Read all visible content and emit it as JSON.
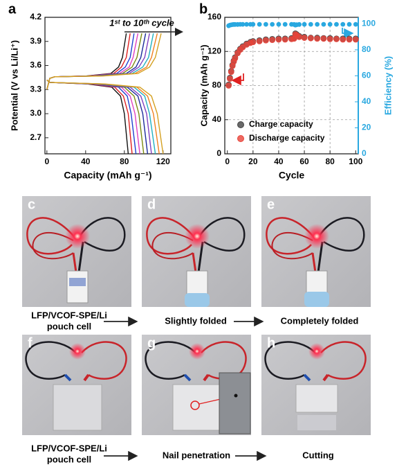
{
  "chart_data": [
    {
      "type": "line",
      "ylabel": "Potential (V vs Li/Li⁺)",
      "xlabel": "Capacity (mAh g⁻¹)",
      "annotation": "1ˢᵗ to 10ᵗʰ cycle",
      "xlim": [
        -2,
        128
      ],
      "xticks": [
        0,
        40,
        80,
        120
      ],
      "ylim": [
        2.5,
        4.2
      ],
      "yticks": [
        2.7,
        {
          "value": 3,
          "label": "3.0"
        },
        3.3,
        3.6,
        3.9,
        4.2
      ],
      "series": [
        {
          "color": "#111111",
          "x": [
            0,
            3,
            8,
            41,
            66,
            74,
            78,
            82
          ],
          "values": [
            3.3,
            3.44,
            3.46,
            3.47,
            3.5,
            3.58,
            3.7,
            4.0
          ]
        },
        {
          "color": "#e02020",
          "x": [
            0,
            3,
            8,
            43,
            69,
            77,
            82,
            86
          ],
          "values": [
            3.3,
            3.44,
            3.46,
            3.47,
            3.5,
            3.58,
            3.7,
            4.0
          ]
        },
        {
          "color": "#1f3fd0",
          "x": [
            0,
            3,
            8,
            45,
            72,
            81,
            86,
            90
          ],
          "values": [
            3.3,
            3.44,
            3.46,
            3.47,
            3.5,
            3.58,
            3.7,
            4.0
          ]
        },
        {
          "color": "#e040c0",
          "x": [
            0,
            3,
            8,
            47,
            75,
            85,
            89,
            94
          ],
          "values": [
            3.3,
            3.44,
            3.46,
            3.47,
            3.5,
            3.58,
            3.7,
            4.0
          ]
        },
        {
          "color": "#7a8a10",
          "x": [
            0,
            3,
            8,
            49,
            78,
            88,
            93,
            98
          ],
          "values": [
            3.3,
            3.44,
            3.46,
            3.47,
            3.5,
            3.58,
            3.7,
            4.0
          ]
        },
        {
          "color": "#1a2a9a",
          "x": [
            0,
            3,
            8,
            51,
            82,
            92,
            97,
            102
          ],
          "values": [
            3.3,
            3.44,
            3.46,
            3.47,
            3.5,
            3.58,
            3.7,
            4.0
          ]
        },
        {
          "color": "#8040c0",
          "x": [
            0,
            3,
            8,
            53,
            85,
            95,
            101,
            106
          ],
          "values": [
            3.3,
            3.44,
            3.46,
            3.47,
            3.5,
            3.58,
            3.7,
            4.0
          ]
        },
        {
          "color": "#20b0c0",
          "x": [
            0,
            3,
            8,
            55,
            88,
            99,
            105,
            110
          ],
          "values": [
            3.3,
            3.44,
            3.46,
            3.47,
            3.5,
            3.58,
            3.7,
            4.0
          ]
        },
        {
          "color": "#f08020",
          "x": [
            0,
            3,
            8,
            57,
            91,
            103,
            108,
            114
          ],
          "values": [
            3.3,
            3.44,
            3.46,
            3.47,
            3.5,
            3.58,
            3.7,
            4.0
          ]
        },
        {
          "color": "#d4a020",
          "x": [
            0,
            3,
            8,
            59,
            94,
            106,
            112,
            118
          ],
          "values": [
            3.3,
            3.44,
            3.46,
            3.47,
            3.5,
            3.58,
            3.7,
            4.0
          ]
        },
        {
          "color": "#111111",
          "x": [
            0,
            3,
            42,
            67,
            76,
            80,
            84
          ],
          "values": [
            3.42,
            3.39,
            3.37,
            3.33,
            3.22,
            3.0,
            2.5
          ]
        },
        {
          "color": "#e02020",
          "x": [
            0,
            3,
            44,
            70,
            79,
            84,
            88
          ],
          "values": [
            3.42,
            3.39,
            3.37,
            3.33,
            3.22,
            3.0,
            2.5
          ]
        },
        {
          "color": "#1f3fd0",
          "x": [
            0,
            3,
            46,
            74,
            83,
            87,
            92
          ],
          "values": [
            3.42,
            3.39,
            3.37,
            3.33,
            3.22,
            3.0,
            2.5
          ]
        },
        {
          "color": "#e040c0",
          "x": [
            0,
            3,
            48,
            77,
            86,
            91,
            96
          ],
          "values": [
            3.42,
            3.39,
            3.37,
            3.33,
            3.22,
            3.0,
            2.5
          ]
        },
        {
          "color": "#7a8a10",
          "x": [
            0,
            3,
            50,
            80,
            90,
            95,
            100
          ],
          "values": [
            3.42,
            3.39,
            3.37,
            3.33,
            3.22,
            3.0,
            2.5
          ]
        },
        {
          "color": "#1a2a9a",
          "x": [
            0,
            3,
            52,
            83,
            94,
            99,
            104
          ],
          "values": [
            3.42,
            3.39,
            3.37,
            3.33,
            3.22,
            3.0,
            2.5
          ]
        },
        {
          "color": "#8040c0",
          "x": [
            0,
            3,
            54,
            86,
            97,
            103,
            108
          ],
          "values": [
            3.42,
            3.39,
            3.37,
            3.33,
            3.22,
            3.0,
            2.5
          ]
        },
        {
          "color": "#20b0c0",
          "x": [
            0,
            3,
            56,
            90,
            101,
            106,
            112
          ],
          "values": [
            3.42,
            3.39,
            3.37,
            3.33,
            3.22,
            3.0,
            2.5
          ]
        },
        {
          "color": "#f08020",
          "x": [
            0,
            3,
            58,
            93,
            104,
            110,
            116
          ],
          "values": [
            3.42,
            3.39,
            3.37,
            3.33,
            3.22,
            3.0,
            2.5
          ]
        },
        {
          "color": "#d4a020",
          "x": [
            0,
            3,
            60,
            96,
            108,
            114,
            120
          ],
          "values": [
            3.42,
            3.39,
            3.37,
            3.33,
            3.22,
            3.0,
            2.5
          ]
        }
      ]
    },
    {
      "type": "scatter",
      "ylabel": "Capacity (mAh g⁻¹)",
      "y2label": "Efficiency (%)",
      "xlabel": "Cycle",
      "xlim": [
        -2,
        102
      ],
      "xticks": [
        0,
        20,
        40,
        60,
        80,
        100
      ],
      "ylim": [
        0,
        160
      ],
      "yticks": [
        0,
        40,
        80,
        120,
        160
      ],
      "y2lim": [
        0,
        105
      ],
      "y2ticks": [
        0,
        20,
        40,
        60,
        80,
        100
      ],
      "y2color": "#29a8e0",
      "grid": true,
      "legend": "lower right",
      "x": [
        1,
        2,
        3,
        4,
        5,
        6,
        8,
        10,
        12,
        15,
        18,
        20,
        25,
        30,
        35,
        40,
        45,
        50,
        52,
        53,
        54,
        56,
        60,
        65,
        70,
        75,
        80,
        85,
        90,
        95,
        100
      ],
      "series": [
        {
          "color": "#29a8e0",
          "axis": "y2",
          "values": [
            98.5,
            99,
            99.2,
            99.4,
            99.5,
            99.5,
            99.5,
            99.6,
            99.6,
            99.6,
            99.6,
            99.6,
            99.6,
            99.6,
            99.6,
            99.6,
            99.6,
            99.6,
            99.5,
            99,
            99.3,
            99.5,
            99.6,
            99.6,
            99.6,
            99.6,
            99.6,
            99.6,
            99.6,
            99.6,
            99.6
          ]
        },
        {
          "name": "Charge capacity",
          "color": "#444444",
          "values": [
            81,
            89,
            97,
            104,
            109,
            113,
            119,
            123,
            126,
            129,
            131,
            132,
            133,
            134,
            134.5,
            135,
            135,
            135.5,
            136,
            141,
            140,
            138,
            137,
            136,
            136,
            135.5,
            135.5,
            135,
            135,
            135,
            135
          ]
        },
        {
          "name": "Discharge capacity",
          "color": "#e8443a",
          "values": [
            80,
            88,
            96,
            103,
            108,
            112,
            118,
            122,
            125,
            128,
            130,
            131,
            132,
            133,
            133.5,
            134,
            134,
            134.5,
            135,
            140,
            139,
            137,
            136,
            135.5,
            135,
            135,
            134.5,
            134.5,
            134,
            134,
            134
          ]
        }
      ]
    }
  ],
  "panel_labels": [
    "a",
    "b",
    "c",
    "d",
    "e",
    "f",
    "g",
    "h"
  ],
  "captions": [
    "LFP/VCOF-SPE/Li",
    "pouch cell",
    "Slightly folded",
    "Completely folded",
    "LFP/VCOF-SPE/Li",
    "pouch cell",
    "Nail penetration",
    "Cutting"
  ]
}
